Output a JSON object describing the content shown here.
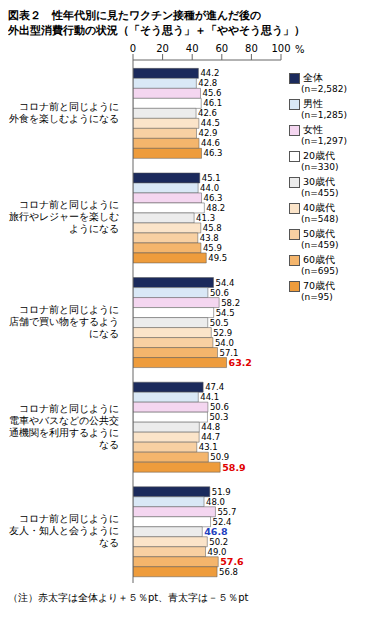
{
  "chart_data": {
    "type": "bar",
    "orientation": "horizontal",
    "title": "図表２　性年代別に見たワクチン接種が進んだ後の\n外出型消費行動の状況（「そう思う」＋「ややそう思う」）",
    "note": "（注）赤太字は全体より＋５％pt、青太字は－５％pt",
    "highlight_threshold": 5,
    "unit": "%",
    "xlim": [
      0,
      100
    ],
    "xticks": [
      0,
      20,
      40,
      60,
      80,
      100
    ],
    "grid": false,
    "data_labels": true,
    "legend": "right",
    "categories": [
      "コロナ前と同じように\n外食を楽しむようになる",
      "コロナ前と同じように\n旅行やレジャーを楽しむ\nようになる",
      "コロナ前と同じように\n店舗で買い物をするよう\nになる",
      "コロナ前と同じように\n電車やバスなどの公共交\n通機関を利用するように\nなる",
      "コロナ前と同じように\n友人・知人と会うように\nなる"
    ],
    "series": [
      {
        "name": "全体",
        "n": "(n=2,582)",
        "color": "#1b2a5c",
        "values": [
          44.2,
          45.1,
          54.4,
          47.4,
          51.9
        ],
        "value_labels": [
          "44.2",
          "45.1",
          "54.4",
          "47.4",
          "51.9"
        ]
      },
      {
        "name": "男性",
        "n": "(n=1,285)",
        "color": "#d9e8f6",
        "values": [
          42.8,
          44.0,
          50.6,
          44.1,
          48.0
        ],
        "value_labels": [
          "42.8",
          "44.0",
          "50.6",
          "44.1",
          "48.0"
        ]
      },
      {
        "name": "女性",
        "n": "(n=1,297)",
        "color": "#f4d6f0",
        "values": [
          45.6,
          46.3,
          58.2,
          50.6,
          55.7
        ],
        "value_labels": [
          "45.6",
          "46.3",
          "58.2",
          "50.6",
          "55.7"
        ]
      },
      {
        "name": "20歳代",
        "n": "(n=330)",
        "color": "#ffffff",
        "values": [
          46.1,
          48.2,
          54.5,
          50.3,
          52.4
        ],
        "value_labels": [
          "46.1",
          "48.2",
          "54.5",
          "50.3",
          "52.4"
        ]
      },
      {
        "name": "30歳代",
        "n": "(n=455)",
        "color": "#ececec",
        "values": [
          42.6,
          41.3,
          50.5,
          44.8,
          46.8
        ],
        "value_labels": [
          "42.6",
          "41.3",
          "50.5",
          "44.8",
          "46.8"
        ]
      },
      {
        "name": "40歳代",
        "n": "(n=548)",
        "color": "#fbe4c9",
        "values": [
          44.5,
          45.8,
          52.9,
          44.7,
          50.2
        ],
        "value_labels": [
          "44.5",
          "45.8",
          "52.9",
          "44.7",
          "50.2"
        ]
      },
      {
        "name": "50歳代",
        "n": "(n=459)",
        "color": "#f8d0a2",
        "values": [
          42.9,
          43.8,
          54.0,
          43.1,
          49.0
        ],
        "value_labels": [
          "42.9",
          "43.8",
          "54.0",
          "43.1",
          "49.0"
        ]
      },
      {
        "name": "60歳代",
        "n": "(n=695)",
        "color": "#f4b56c",
        "values": [
          44.6,
          45.9,
          57.1,
          50.9,
          57.6
        ],
        "value_labels": [
          "44.6",
          "45.9",
          "57.1",
          "50.9",
          "57.6"
        ]
      },
      {
        "name": "70歳代",
        "n": "(n=95)",
        "color": "#ee9c3c",
        "values": [
          46.3,
          49.5,
          63.2,
          58.9,
          56.8
        ],
        "value_labels": [
          "46.3",
          "49.5",
          "63.2",
          "58.9",
          "56.8"
        ]
      }
    ]
  }
}
